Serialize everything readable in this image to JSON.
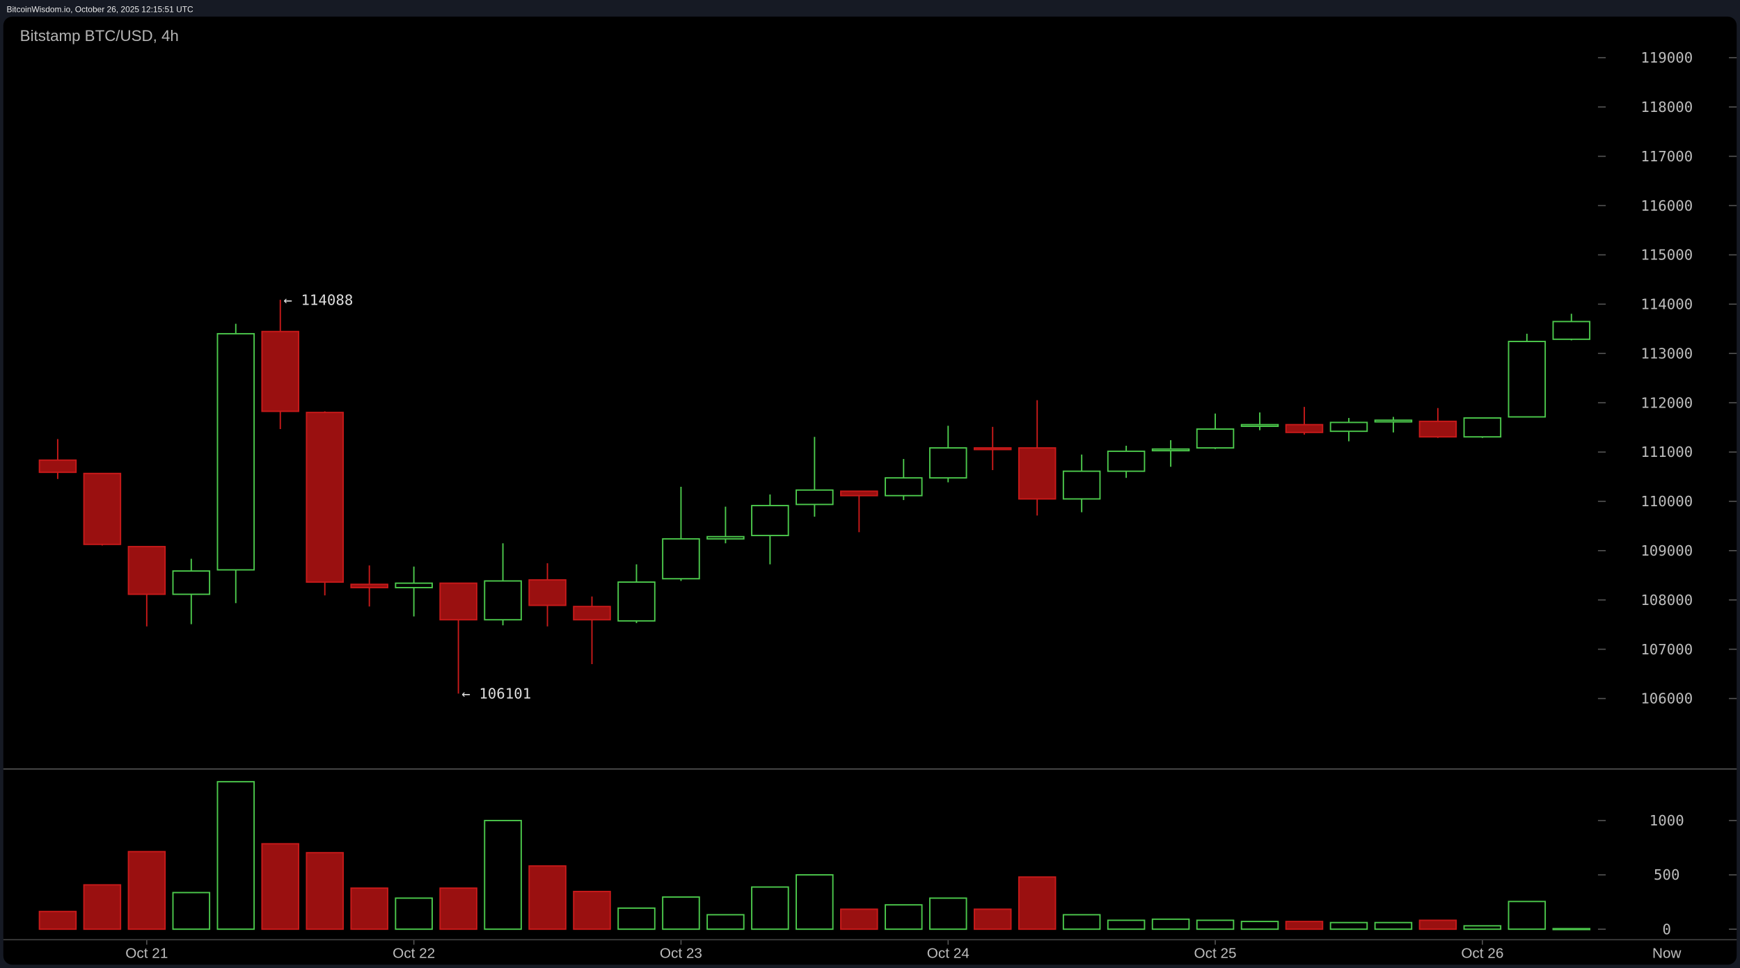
{
  "header": {
    "caption": "BitcoinWisdom.io, October 26, 2025 12:15:51 UTC"
  },
  "colors": {
    "up": "#4cc94c",
    "down_fill": "#9a1010",
    "down_stroke": "#c81a1a",
    "background": "#000000",
    "frame": "#161a24",
    "axis_text": "#bdbdbd"
  },
  "chart_data": {
    "type": "candlestick",
    "title": "Bitstamp BTC/USD, 4h",
    "price_axis": {
      "ylim": [
        105500,
        119500
      ],
      "ticks": [
        119000,
        118000,
        117000,
        116000,
        115000,
        114000,
        113000,
        112000,
        111000,
        110000,
        109000,
        108000,
        107000,
        106000
      ],
      "labels": [
        "119000",
        "118000",
        "117000",
        "116000",
        "115000",
        "114000",
        "113000",
        "112000",
        "111000",
        "110000",
        "109000",
        "108000",
        "107000",
        "106000"
      ]
    },
    "volume_axis": {
      "ylim": [
        0,
        1400
      ],
      "ticks": [
        1000,
        500,
        0
      ],
      "labels": [
        "1000",
        "500",
        "0"
      ]
    },
    "x_axis": {
      "labels": [
        {
          "label": "Oct 21",
          "candle": 3
        },
        {
          "label": "Oct 22",
          "candle": 9
        },
        {
          "label": "Oct 23",
          "candle": 15
        },
        {
          "label": "Oct 24",
          "candle": 21
        },
        {
          "label": "Oct 25",
          "candle": 27
        },
        {
          "label": "Oct 26",
          "candle": 33
        }
      ],
      "now_label": "Now"
    },
    "annotations": [
      {
        "label": "← 114088",
        "candle": 6,
        "price": 114088
      },
      {
        "label": "← 106101",
        "candle": 10,
        "price": 106101
      }
    ],
    "candles": [
      {
        "o": 110836,
        "h": 111263,
        "l": 110454,
        "c": 110589,
        "v": 163
      },
      {
        "o": 110566,
        "h": 110566,
        "l": 109104,
        "c": 109127,
        "v": 408
      },
      {
        "o": 109082,
        "h": 109082,
        "l": 107463,
        "c": 108115,
        "v": 714
      },
      {
        "o": 108115,
        "h": 108835,
        "l": 107508,
        "c": 108587,
        "v": 337
      },
      {
        "o": 108610,
        "h": 113602,
        "l": 107935,
        "c": 113400,
        "v": 1357
      },
      {
        "o": 113445,
        "h": 114088,
        "l": 111466,
        "c": 111826,
        "v": 786
      },
      {
        "o": 111803,
        "h": 111826,
        "l": 108092,
        "c": 108362,
        "v": 704
      },
      {
        "o": 108317,
        "h": 108700,
        "l": 107867,
        "c": 108250,
        "v": 378
      },
      {
        "o": 108250,
        "h": 108677,
        "l": 107665,
        "c": 108340,
        "v": 286
      },
      {
        "o": 108340,
        "h": 108340,
        "l": 106101,
        "c": 107598,
        "v": 378
      },
      {
        "o": 107598,
        "h": 109149,
        "l": 107485,
        "c": 108385,
        "v": 1000
      },
      {
        "o": 108407,
        "h": 108745,
        "l": 107463,
        "c": 107890,
        "v": 582
      },
      {
        "o": 107867,
        "h": 108070,
        "l": 106698,
        "c": 107598,
        "v": 347
      },
      {
        "o": 107575,
        "h": 108722,
        "l": 107530,
        "c": 108362,
        "v": 194
      },
      {
        "o": 108430,
        "h": 110296,
        "l": 108385,
        "c": 109239,
        "v": 296
      },
      {
        "o": 109239,
        "h": 109892,
        "l": 109149,
        "c": 109284,
        "v": 133
      },
      {
        "o": 109307,
        "h": 110139,
        "l": 108722,
        "c": 109914,
        "v": 388
      },
      {
        "o": 109937,
        "h": 111308,
        "l": 109689,
        "c": 110229,
        "v": 500
      },
      {
        "o": 110206,
        "h": 110206,
        "l": 109374,
        "c": 110116,
        "v": 184
      },
      {
        "o": 110116,
        "h": 110859,
        "l": 110026,
        "c": 110476,
        "v": 224
      },
      {
        "o": 110476,
        "h": 111533,
        "l": 110386,
        "c": 111084,
        "v": 286
      },
      {
        "o": 111084,
        "h": 111511,
        "l": 110634,
        "c": 111061,
        "v": 184
      },
      {
        "o": 111084,
        "h": 112051,
        "l": 109712,
        "c": 110049,
        "v": 480
      },
      {
        "o": 110049,
        "h": 110949,
        "l": 109779,
        "c": 110611,
        "v": 133
      },
      {
        "o": 110611,
        "h": 111128,
        "l": 110476,
        "c": 111016,
        "v": 82
      },
      {
        "o": 111039,
        "h": 111241,
        "l": 110701,
        "c": 111061,
        "v": 92
      },
      {
        "o": 111084,
        "h": 111781,
        "l": 111061,
        "c": 111466,
        "v": 82
      },
      {
        "o": 111533,
        "h": 111803,
        "l": 111443,
        "c": 111556,
        "v": 71
      },
      {
        "o": 111556,
        "h": 111916,
        "l": 111353,
        "c": 111398,
        "v": 71
      },
      {
        "o": 111421,
        "h": 111691,
        "l": 111218,
        "c": 111601,
        "v": 61
      },
      {
        "o": 111623,
        "h": 111713,
        "l": 111398,
        "c": 111646,
        "v": 61
      },
      {
        "o": 111623,
        "h": 111893,
        "l": 111286,
        "c": 111308,
        "v": 82
      },
      {
        "o": 111308,
        "h": 111691,
        "l": 111286,
        "c": 111691,
        "v": 31
      },
      {
        "o": 111713,
        "h": 113400,
        "l": 111713,
        "c": 113243,
        "v": 255
      },
      {
        "o": 113288,
        "h": 113805,
        "l": 113265,
        "c": 113647,
        "v": 5
      }
    ]
  }
}
